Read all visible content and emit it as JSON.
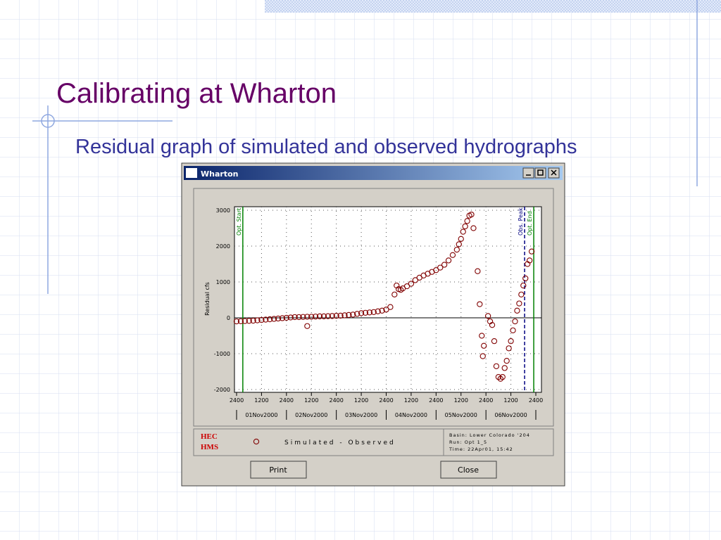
{
  "slide": {
    "title": "Calibrating at Wharton",
    "subtitle": "Residual graph of simulated and observed hydrographs"
  },
  "window": {
    "title": "Wharton",
    "buttons": [
      "Print",
      "Close"
    ],
    "logo": [
      "HEC",
      "HMS"
    ],
    "info": [
      "Basin: Lower Colorado '204",
      "Run:   Opt 1_5",
      "Time:  22Apr01, 15:42"
    ]
  },
  "chart_data": {
    "type": "scatter",
    "y_label": "Residual cfs",
    "xlim": [
      0,
      144
    ],
    "ylim": [
      -2000,
      3000
    ],
    "xticks": [
      {
        "value": 0,
        "label": "2400"
      },
      {
        "value": 12,
        "label": "1200"
      },
      {
        "value": 24,
        "label": "2400"
      },
      {
        "value": 36,
        "label": "1200"
      },
      {
        "value": 48,
        "label": "2400"
      },
      {
        "value": 60,
        "label": "1200"
      },
      {
        "value": 72,
        "label": "2400"
      },
      {
        "value": 84,
        "label": "1200"
      },
      {
        "value": 96,
        "label": "2400"
      },
      {
        "value": 108,
        "label": "1200"
      },
      {
        "value": 120,
        "label": "2400"
      },
      {
        "value": 132,
        "label": "1200"
      },
      {
        "value": 144,
        "label": "2400"
      }
    ],
    "yticks": [
      -2000,
      -1000,
      0,
      1000,
      2000,
      3000
    ],
    "day_labels": [
      "01Nov2000",
      "02Nov2000",
      "03Nov2000",
      "04Nov2000",
      "05Nov2000",
      "06Nov2000"
    ],
    "grid": true,
    "markers": [
      {
        "label": "Opt. Start",
        "x": 3,
        "color": "#008000",
        "dashed": false
      },
      {
        "label": "Obs. Peak",
        "x": 138.6,
        "color": "#000080",
        "dashed": true
      },
      {
        "label": "Opt. End",
        "x": 143,
        "color": "#008000",
        "dashed": false
      }
    ],
    "series": [
      {
        "name": "Simulated - Observed",
        "color": "#800000",
        "x": [
          0,
          2,
          4,
          6,
          8,
          10,
          12,
          14,
          16,
          18,
          20,
          22,
          24,
          26,
          28,
          30,
          32,
          34,
          34,
          36,
          38,
          40,
          42,
          44,
          46,
          48,
          50,
          52,
          54,
          56,
          58,
          60,
          62,
          64,
          66,
          68,
          70,
          72,
          74,
          76,
          77,
          78,
          79,
          80,
          82,
          84,
          86,
          88,
          90,
          92,
          94,
          96,
          98,
          100,
          102,
          104,
          106,
          107,
          108,
          109,
          110,
          111,
          112,
          113,
          114,
          116,
          117,
          118,
          118.5,
          119,
          121,
          122,
          123,
          124,
          125,
          126,
          127,
          128,
          129,
          130,
          131,
          132,
          133,
          134,
          135,
          136,
          137,
          138,
          139,
          140,
          141,
          142
        ],
        "values": [
          -100,
          -95,
          -90,
          -85,
          -80,
          -70,
          -60,
          -50,
          -40,
          -30,
          -20,
          -10,
          0,
          10,
          20,
          20,
          25,
          -230,
          30,
          30,
          35,
          40,
          40,
          45,
          50,
          55,
          60,
          70,
          80,
          90,
          110,
          130,
          140,
          150,
          160,
          180,
          200,
          230,
          300,
          650,
          900,
          800,
          780,
          820,
          880,
          950,
          1050,
          1120,
          1180,
          1230,
          1280,
          1330,
          1400,
          1480,
          1600,
          1750,
          1900,
          2050,
          2200,
          2400,
          2550,
          2700,
          2850,
          2880,
          2500,
          1300,
          380,
          -500,
          -1070,
          -780,
          50,
          -100,
          -200,
          -650,
          -1350,
          -1650,
          -1700,
          -1650,
          -1400,
          -1200,
          -850,
          -650,
          -350,
          -100,
          200,
          400,
          650,
          900,
          1100,
          1500,
          1600,
          1850
        ]
      }
    ]
  }
}
